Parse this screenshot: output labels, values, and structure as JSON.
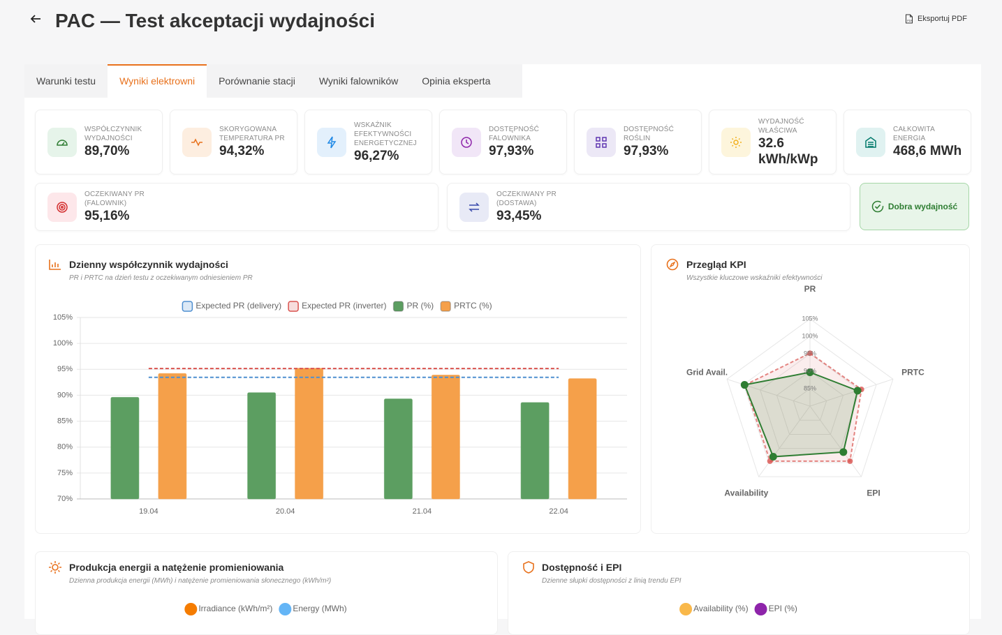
{
  "header": {
    "title": "PAC — Test akceptacji wydajności",
    "export_button": "Eksportuj PDF"
  },
  "tabs": {
    "items": [
      "Warunki testu",
      "Wyniki elektrowni",
      "Porównanie stacji",
      "Wyniki falowników",
      "Opinia eksperta"
    ],
    "active": 1
  },
  "kpi_cards": [
    {
      "label": "WSPÓŁCZYNNIK WYDAJNOŚCI",
      "value": "89,70%"
    },
    {
      "label": "SKORYGOWANA TEMPERATURA PR",
      "value": "94,32%"
    },
    {
      "label": "WSKAŹNIK EFEKTYWNOŚCI ENERGETYCZNEJ",
      "value": "96,27%"
    },
    {
      "label": "DOSTĘPNOŚĆ FALOWNIKA",
      "value": "97,93%"
    },
    {
      "label": "DOSTĘPNOŚĆ ROŚLIN",
      "value": "97,93%"
    },
    {
      "label": "WYDAJNOŚĆ WŁAŚCIWA",
      "value": "32.6 kWh/kWp"
    },
    {
      "label": "CAŁKOWITA ENERGIA",
      "value": "468,6 MWh"
    }
  ],
  "kpi_cards_secondary": [
    {
      "label": "OCZEKIWANY PR (FALOWNIK)",
      "value": "95,16%"
    },
    {
      "label": "OCZEKIWANY PR (DOSTAWA)",
      "value": "93,45%"
    }
  ],
  "status_badge": "Dobra wydajność",
  "charts": [
    {
      "type": "bar",
      "title": "Dzienny współczynnik wydajności",
      "subtitle": "PR i PRTC na dzień testu z oczekiwanym odniesieniem PR",
      "categories": [
        "19.04",
        "20.04",
        "21.04",
        "22.04"
      ],
      "series": [
        {
          "name": "Expected PR (delivery)",
          "type": "line",
          "dashed": true,
          "color": "#4f8fd0",
          "values": [
            93.45,
            93.45,
            93.45,
            93.45
          ]
        },
        {
          "name": "Expected PR (inverter)",
          "type": "line",
          "dashed": true,
          "color": "#d9534f",
          "values": [
            95.16,
            95.16,
            95.16,
            95.16
          ]
        },
        {
          "name": "PR (%)",
          "type": "bar",
          "color": "#5c9e61",
          "values": [
            89.6,
            90.5,
            89.3,
            88.6
          ]
        },
        {
          "name": "PRTC (%)",
          "type": "bar",
          "color": "#f5a04a",
          "values": [
            94.2,
            95.2,
            93.9,
            93.2
          ]
        }
      ],
      "ylim": [
        70,
        105
      ],
      "yticks": [
        {
          "value": 70,
          "label": "70%"
        },
        {
          "value": 75,
          "label": "75%"
        },
        {
          "value": 80,
          "label": "80%"
        },
        {
          "value": 85,
          "label": "85%"
        },
        {
          "value": 90,
          "label": "90%"
        },
        {
          "value": 95,
          "label": "95%"
        },
        {
          "value": 100,
          "label": "100%"
        },
        {
          "value": 105,
          "label": "105%"
        }
      ],
      "grid": true
    },
    {
      "type": "radar",
      "title": "Przegląd KPI",
      "subtitle": "Wszystkie kluczowe wskaźniki efektywności",
      "categories": [
        "PR",
        "PRTC",
        "EPI",
        "Availability",
        "Grid Avail."
      ],
      "series": [
        {
          "dashed": true,
          "color": "#d9534f",
          "values": [
            95.16,
            95.5,
            99.5,
            99.5,
            99.6
          ]
        },
        {
          "color": "#2e7d32",
          "values": [
            89.7,
            94.32,
            96.27,
            97.93,
            99.7
          ]
        }
      ],
      "rlim": [
        80,
        105
      ],
      "rticks": [
        {
          "value": 85,
          "label": "85%"
        },
        {
          "value": 90,
          "label": "90%"
        },
        {
          "value": 95,
          "label": "95%"
        },
        {
          "value": 100,
          "label": "100%"
        },
        {
          "value": 105,
          "label": "105%"
        }
      ]
    },
    {
      "type": "combo",
      "title": "Produkcja energii a natężenie promieniowania",
      "subtitle": "Dzienna produkcja energii (MWh) i natężenie promieniowania słonecznego (kWh/m²)",
      "series": [
        {
          "name": "Irradiance (kWh/m²)",
          "color": "#f57c00"
        },
        {
          "name": "Energy (MWh)",
          "color": "#64b5f6"
        }
      ]
    },
    {
      "type": "combo",
      "title": "Dostępność i EPI",
      "subtitle": "Dzienne słupki dostępności z linią trendu EPI",
      "series": [
        {
          "name": "Availability (%)",
          "color": "#f9b84a"
        },
        {
          "name": "EPI (%)",
          "color": "#8e24aa"
        }
      ]
    }
  ]
}
